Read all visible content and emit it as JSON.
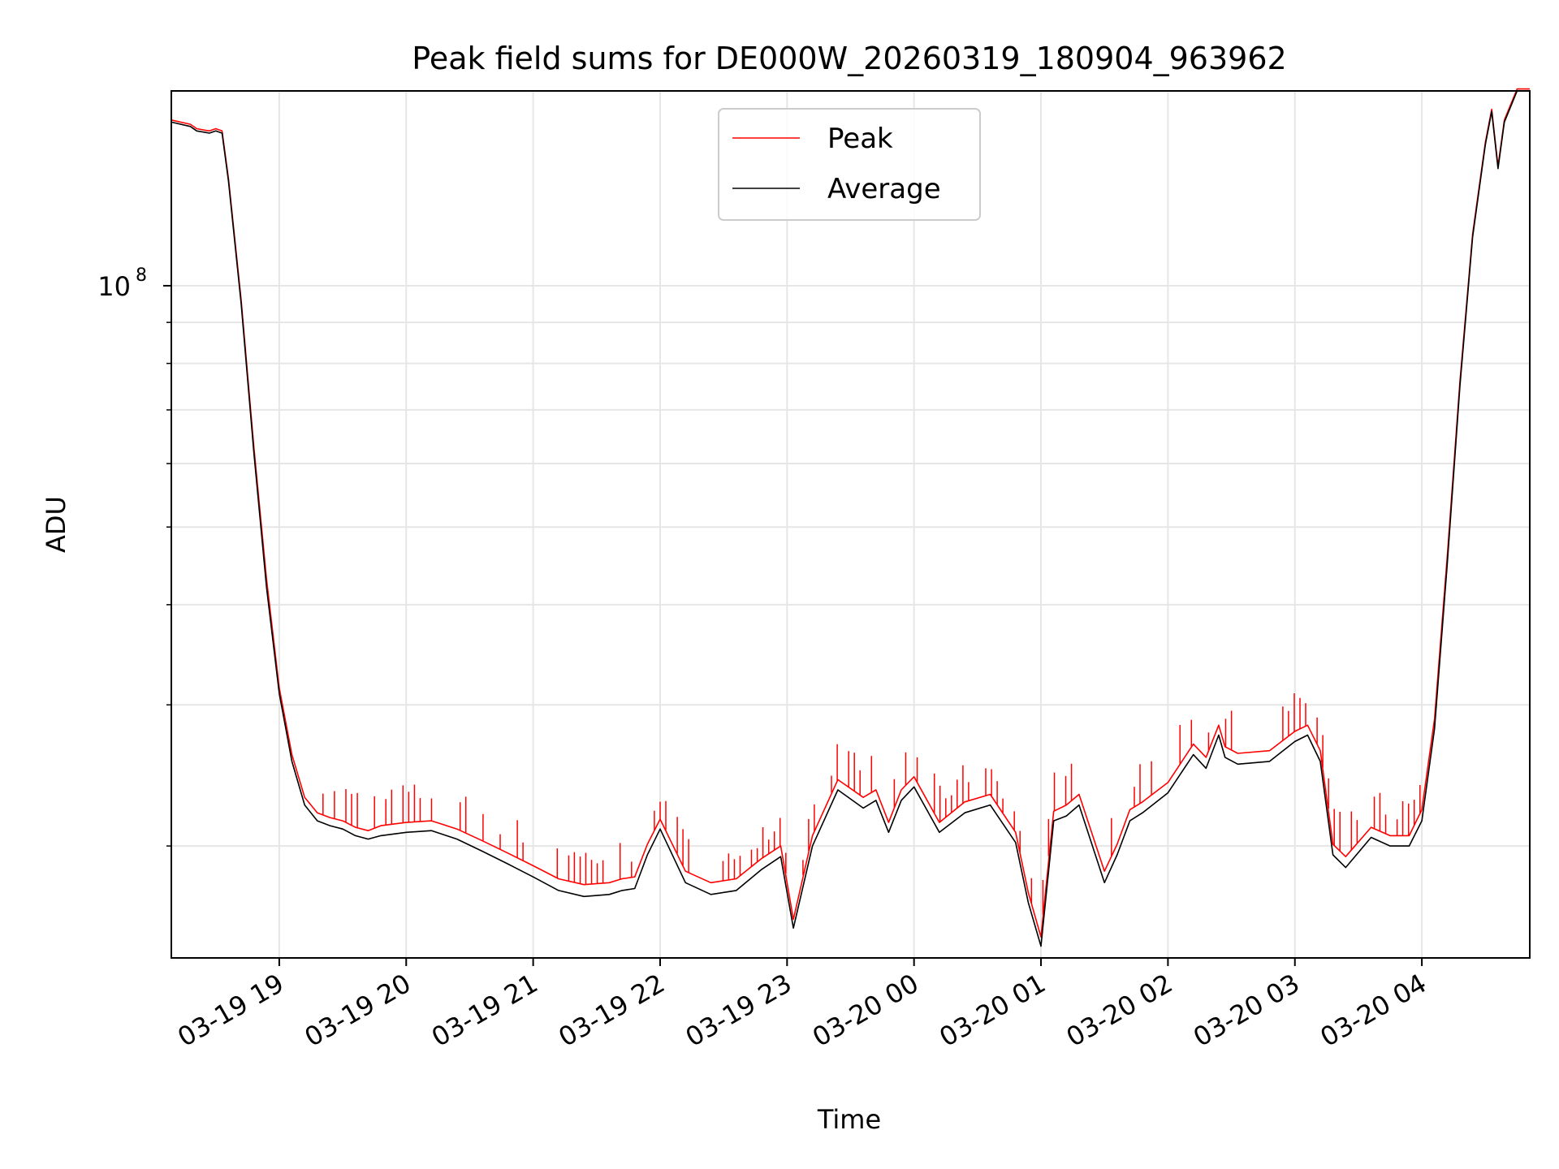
{
  "chart_data": {
    "type": "line",
    "title": "Peak field sums for DE000W_20260319_180904_963962",
    "xlabel": "Time",
    "ylabel": "ADU",
    "yscale": "log",
    "ylim": [
      14500000,
      175000000
    ],
    "xlim_hours": [
      18.15,
      28.85
    ],
    "x_tick_labels": [
      "03-19 19",
      "03-19 20",
      "03-19 21",
      "03-19 22",
      "03-19 23",
      "03-20 00",
      "03-20 01",
      "03-20 02",
      "03-20 03",
      "03-20 04"
    ],
    "x_tick_hours": [
      19,
      20,
      21,
      22,
      23,
      24,
      25,
      26,
      27,
      28
    ],
    "y_major_tick": {
      "label": "10",
      "exponent": "8",
      "value": 100000000
    },
    "y_minor_ticks": [
      20000000,
      30000000,
      40000000,
      50000000,
      60000000,
      70000000,
      80000000,
      90000000
    ],
    "grid": true,
    "legend": {
      "position": "upper-center",
      "entries": [
        "Peak",
        "Average"
      ]
    },
    "colors": {
      "Peak": "#ff0000",
      "Average": "#000000"
    },
    "series": [
      {
        "name": "Average",
        "hours": [
          18.15,
          18.3,
          18.35,
          18.45,
          18.5,
          18.55,
          18.6,
          18.7,
          18.8,
          18.9,
          19.0,
          19.1,
          19.2,
          19.3,
          19.4,
          19.5,
          19.6,
          19.7,
          19.8,
          20.0,
          20.2,
          20.4,
          20.6,
          20.8,
          21.0,
          21.2,
          21.4,
          21.6,
          21.7,
          21.8,
          21.9,
          22.0,
          22.2,
          22.4,
          22.6,
          22.8,
          22.95,
          23.05,
          23.2,
          23.4,
          23.6,
          23.7,
          23.8,
          23.9,
          24.0,
          24.2,
          24.4,
          24.6,
          24.8,
          24.9,
          25.0,
          25.1,
          25.2,
          25.3,
          25.5,
          25.6,
          25.7,
          25.8,
          26.0,
          26.2,
          26.3,
          26.4,
          26.45,
          26.55,
          26.8,
          27.0,
          27.1,
          27.2,
          27.3,
          27.4,
          27.6,
          27.75,
          27.9,
          28.0,
          28.1,
          28.2,
          28.3,
          28.4,
          28.5,
          28.55,
          28.6,
          28.65,
          28.75,
          28.85
        ],
        "values": [
          160,
          158,
          156,
          155,
          156,
          155,
          135,
          95,
          62,
          42,
          31,
          25.5,
          22.5,
          21.5,
          21.2,
          21.0,
          20.6,
          20.4,
          20.6,
          20.8,
          20.9,
          20.4,
          19.7,
          19.0,
          18.3,
          17.6,
          17.3,
          17.4,
          17.6,
          17.7,
          19.5,
          21.0,
          18.0,
          17.4,
          17.6,
          18.7,
          19.4,
          15.8,
          20.0,
          23.5,
          22.3,
          22.8,
          20.8,
          22.8,
          23.7,
          20.8,
          22.0,
          22.5,
          20.2,
          17.0,
          15.0,
          21.5,
          21.8,
          22.5,
          18.0,
          19.5,
          21.5,
          22.0,
          23.3,
          26.0,
          25.0,
          27.5,
          25.8,
          25.3,
          25.5,
          27.0,
          27.5,
          25.5,
          19.5,
          18.8,
          20.5,
          20.0,
          20.0,
          21.5,
          28.0,
          45.0,
          75.0,
          115.0,
          150.0,
          165.0,
          140.0,
          160.0,
          175.0,
          175.0
        ]
      },
      {
        "name": "Peak",
        "hours": [
          18.15,
          18.3,
          18.35,
          18.45,
          18.5,
          18.55,
          18.6,
          18.7,
          18.8,
          18.9,
          19.0,
          19.1,
          19.2,
          19.3,
          19.4,
          19.5,
          19.6,
          19.7,
          19.8,
          20.0,
          20.2,
          20.4,
          20.6,
          20.8,
          21.0,
          21.2,
          21.4,
          21.6,
          21.7,
          21.8,
          21.9,
          22.0,
          22.2,
          22.4,
          22.6,
          22.8,
          22.95,
          23.05,
          23.2,
          23.4,
          23.6,
          23.7,
          23.8,
          23.9,
          24.0,
          24.2,
          24.4,
          24.6,
          24.8,
          24.9,
          25.0,
          25.1,
          25.2,
          25.3,
          25.5,
          25.6,
          25.7,
          25.8,
          26.0,
          26.2,
          26.3,
          26.4,
          26.45,
          26.55,
          26.8,
          27.0,
          27.1,
          27.2,
          27.3,
          27.4,
          27.6,
          27.75,
          27.9,
          28.0,
          28.1,
          28.2,
          28.3,
          28.4,
          28.5,
          28.55,
          28.6,
          28.65,
          28.75,
          28.85
        ],
        "values": [
          161,
          159,
          157,
          156,
          157,
          156,
          136,
          96,
          63,
          43,
          31.5,
          26,
          23,
          22,
          21.7,
          21.5,
          21.1,
          20.9,
          21.2,
          21.4,
          21.5,
          21.0,
          20.3,
          19.6,
          18.9,
          18.2,
          17.9,
          18.0,
          18.2,
          18.3,
          20.1,
          21.6,
          18.6,
          18.0,
          18.2,
          19.3,
          20.0,
          16.2,
          20.6,
          24.2,
          23.0,
          23.5,
          21.4,
          23.5,
          24.4,
          21.4,
          22.7,
          23.2,
          20.8,
          17.5,
          15.4,
          22.1,
          22.5,
          23.2,
          18.6,
          20.1,
          22.2,
          22.7,
          24.0,
          26.8,
          25.8,
          28.3,
          26.6,
          26.1,
          26.3,
          27.8,
          28.3,
          26.3,
          20.1,
          19.4,
          21.1,
          20.6,
          20.6,
          22.2,
          28.8,
          46.0,
          76.0,
          116.0,
          151.0,
          166.0,
          141.0,
          161.0,
          176.0,
          176.0
        ]
      }
    ]
  }
}
